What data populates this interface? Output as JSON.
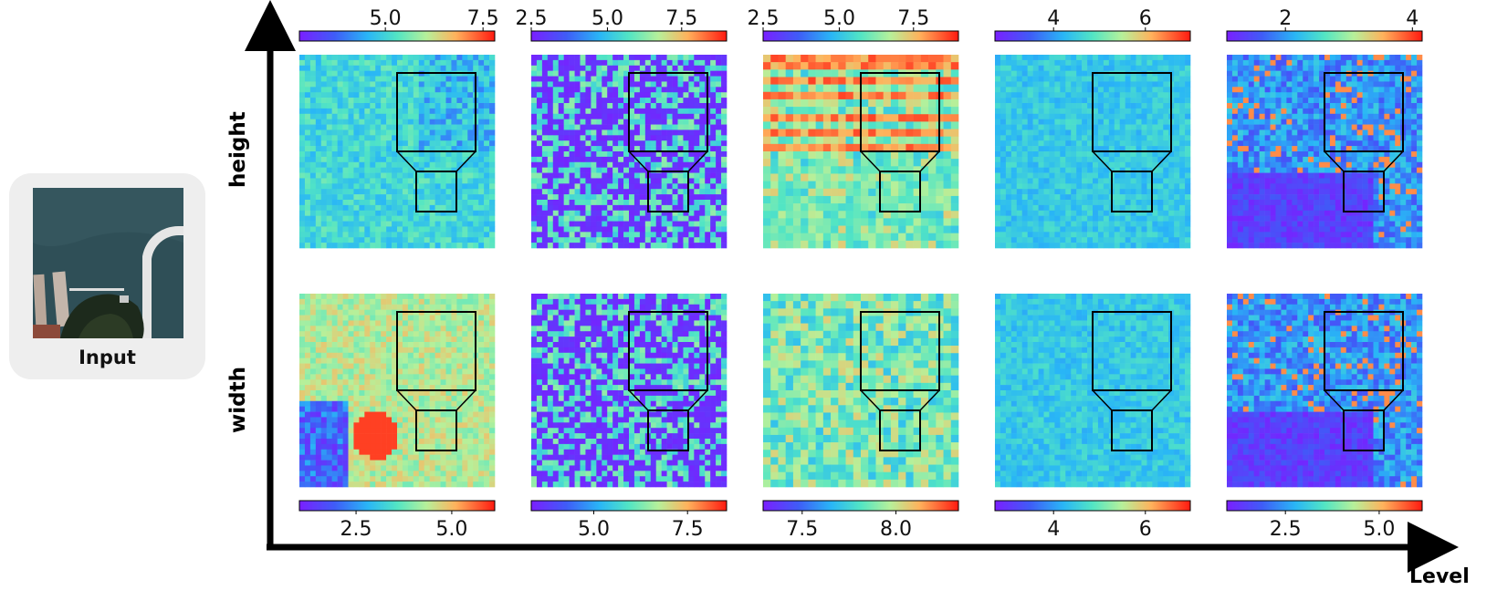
{
  "input": {
    "label": "Input"
  },
  "rows": [
    {
      "label": "height"
    },
    {
      "label": "width"
    }
  ],
  "axis": {
    "label": "Level"
  },
  "colormap": "rainbow",
  "panels": [
    {
      "row": "height",
      "level": 1,
      "colorbar_ticks": [
        "5.0",
        "7.5"
      ],
      "tick_positions": [
        0.44,
        0.94
      ],
      "pattern": "speckle-cyan"
    },
    {
      "row": "height",
      "level": 2,
      "colorbar_ticks": [
        "2.5",
        "5.0",
        "7.5"
      ],
      "tick_positions": [
        0.0,
        0.39,
        0.77
      ],
      "pattern": "violet-noise"
    },
    {
      "row": "height",
      "level": 3,
      "colorbar_ticks": [
        "2.5",
        "5.0",
        "7.5"
      ],
      "tick_positions": [
        0.0,
        0.39,
        0.77
      ],
      "pattern": "red-stripes"
    },
    {
      "row": "height",
      "level": 4,
      "colorbar_ticks": [
        "4",
        "6"
      ],
      "tick_positions": [
        0.3,
        0.77
      ],
      "pattern": "smooth-cyan"
    },
    {
      "row": "height",
      "level": 5,
      "colorbar_ticks": [
        "2",
        "4"
      ],
      "tick_positions": [
        0.3,
        0.95
      ],
      "pattern": "edges-violet"
    },
    {
      "row": "width",
      "level": 1,
      "colorbar_ticks": [
        "2.5",
        "5.0"
      ],
      "tick_positions": [
        0.29,
        0.78
      ],
      "pattern": "warm-blotch"
    },
    {
      "row": "width",
      "level": 2,
      "colorbar_ticks": [
        "5.0",
        "7.5"
      ],
      "tick_positions": [
        0.32,
        0.8
      ],
      "pattern": "violet-noise"
    },
    {
      "row": "width",
      "level": 3,
      "colorbar_ticks": [
        "7.5",
        "8.0"
      ],
      "tick_positions": [
        0.2,
        0.68
      ],
      "pattern": "blocky-green"
    },
    {
      "row": "width",
      "level": 4,
      "colorbar_ticks": [
        "4",
        "6"
      ],
      "tick_positions": [
        0.3,
        0.77
      ],
      "pattern": "smooth-cyan"
    },
    {
      "row": "width",
      "level": 5,
      "colorbar_ticks": [
        "2.5",
        "5.0"
      ],
      "tick_positions": [
        0.3,
        0.78
      ],
      "pattern": "edges-violet"
    }
  ]
}
